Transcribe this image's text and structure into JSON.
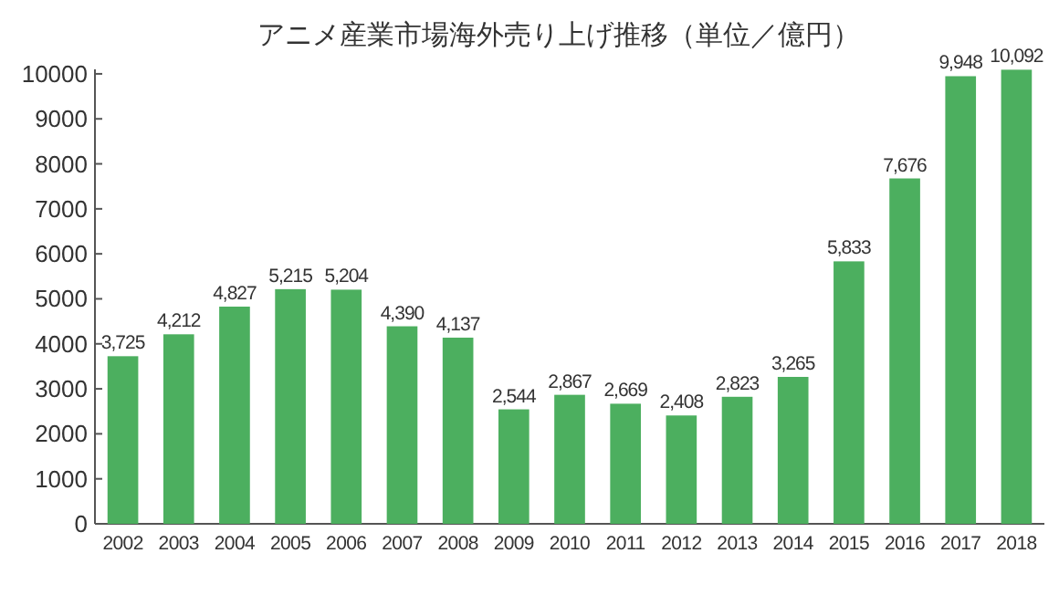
{
  "chart_data": {
    "type": "bar",
    "title": "アニメ産業市場海外売り上げ推移（単位／億円）",
    "categories": [
      "2002",
      "2003",
      "2004",
      "2005",
      "2006",
      "2007",
      "2008",
      "2009",
      "2010",
      "2011",
      "2012",
      "2013",
      "2014",
      "2015",
      "2016",
      "2017",
      "2018"
    ],
    "values": [
      3725,
      4212,
      4827,
      5215,
      5204,
      4390,
      4137,
      2544,
      2867,
      2669,
      2408,
      2823,
      3265,
      5833,
      7676,
      9948,
      10092
    ],
    "value_labels": [
      "3,725",
      "4,212",
      "4,827",
      "5,215",
      "5,204",
      "4,390",
      "4,137",
      "2,544",
      "2,867",
      "2,669",
      "2,408",
      "2,823",
      "3,265",
      "5,833",
      "7,676",
      "9,948",
      "10,092"
    ],
    "color": "#4caf5f",
    "ylim": [
      0,
      10100
    ],
    "yticks": [
      0,
      1000,
      2000,
      3000,
      4000,
      5000,
      6000,
      7000,
      8000,
      9000,
      10000
    ],
    "grid": false
  }
}
